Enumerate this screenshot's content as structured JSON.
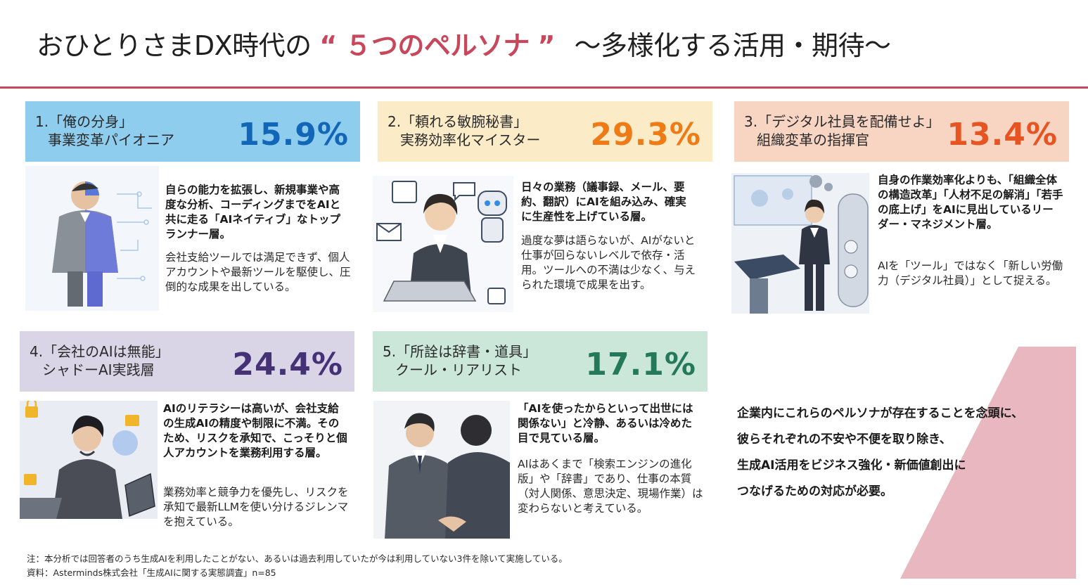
{
  "title": {
    "pre": "おひとりさまDX時代の",
    "open_quote": "“",
    "accent": "５つのペルソナ",
    "close_quote": "”",
    "post": "〜多様化する活用・期待〜"
  },
  "personas": [
    {
      "line1": "1.「俺の分身」",
      "line2": "事業変革パイオニア",
      "percent": "15.9%",
      "head_color": "#8fcdef",
      "pct_color": "#1266b8",
      "lead": "自らの能力を拡張し、新規事業や高度な分析、コーディングまでをAIと共に走る「AIネイティブ」なトップランナー層。",
      "body": "会社支給ツールでは満足できず、個人アカウントや最新ツールを駆使し、圧倒的な成果を出している。"
    },
    {
      "line1": "2.「頼れる敏腕秘書」",
      "line2": "実務効率化マイスター",
      "percent": "29.3%",
      "head_color": "#fbebc7",
      "pct_color": "#ee7b16",
      "lead": "日々の業務（議事録、メール、要約、翻訳）にAIを組み込み、確実に生産性を上げている層。",
      "body": "過度な夢は語らないが、AIがないと仕事が回らないレベルで依存・活用。ツールへの不満は少なく、与えられた環境で成果を出す。"
    },
    {
      "line1": "3.「デジタル社員を配備せよ」",
      "line2": "組織変革の指揮官",
      "percent": "13.4%",
      "head_color": "#f8d4c3",
      "pct_color": "#e65422",
      "lead": "自身の作業効率化よりも、「組織全体の構造改革」「人材不足の解消」「若手の底上げ」をAIに見出しているリーダー・マネジメント層。",
      "body": "AIを「ツール」ではなく「新しい労働力（デジタル社員）」として捉える。"
    },
    {
      "line1": "4.「会社のAIは無能」",
      "line2": "シャドーAI実践層",
      "percent": "24.4%",
      "head_color": "#d9d5e6",
      "pct_color": "#453276",
      "lead": "AIのリテラシーは高いが、会社支給の生成AIの精度や制限に不満。そのため、リスクを承知で、こっそりと個人アカウントを業務利用する層。",
      "body": "業務効率と競争力を優先し、リスクを承知で最新LLMを使い分けるジレンマを抱えている。"
    },
    {
      "line1": "5.「所詮は辞書・道具」",
      "line2": "クール・リアリスト",
      "percent": "17.1%",
      "head_color": "#cbe7da",
      "pct_color": "#23795a",
      "lead": "「AIを使ったからといって出世には関係ない」と冷静、あるいは冷めた目で見ている層。",
      "body": "AIはあくまで「検索エンジンの進化版」や「辞書」であり、仕事の本質（対人関係、意思決定、現場作業）は変わらないと考えている。"
    }
  ],
  "conclusion": [
    "企業内にこれらのペルソナが存在することを念頭に、",
    "彼らそれぞれの不安や不便を取り除き、",
    "生成AI活用をビジネス強化・新価値創出に",
    "つなげるための対応が必要。"
  ],
  "conclusion_accent_color": "#e8b7bf",
  "footnote": "注：本分析では回答者のうち生成AIを利用したことがない、あるいは過去利用していたが今は利用していない3件を除いて実施している。",
  "source": "資料：Asterminds株式会社「生成AIに関する実態調査」n=85"
}
